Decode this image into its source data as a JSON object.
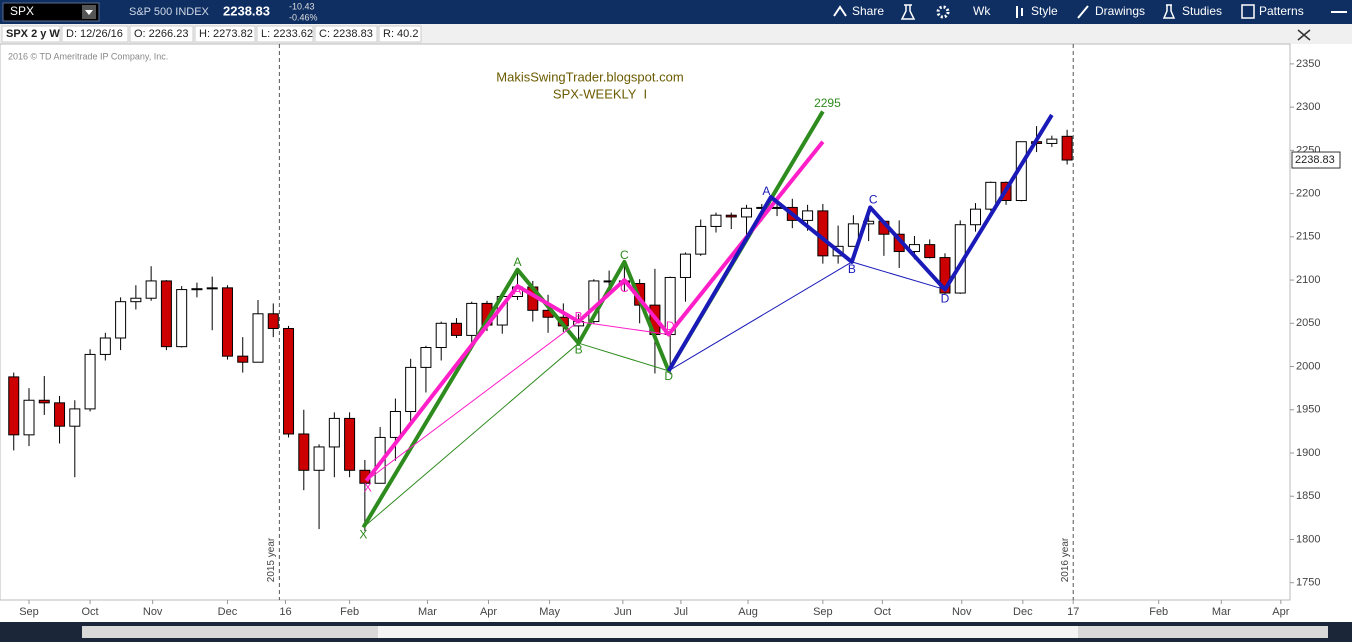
{
  "toolbar": {
    "symbol": "SPX",
    "name": "S&P 500 INDEX",
    "last": "2238.83",
    "change": "-10.43",
    "change_pct": "-0.46%",
    "buttons": [
      "Share",
      "Wk",
      "Style",
      "Drawings",
      "Studies",
      "Patterns"
    ]
  },
  "info_bar": [
    "SPX 2 y W",
    "D: 12/26/16",
    "O: 2266.23",
    "H: 2273.82",
    "L: 2233.62",
    "C: 2238.83",
    "R: 40.2"
  ],
  "chart_data": {
    "type": "candlestick",
    "copyright": "2016 © TD Ameritrade IP Company, Inc.",
    "title": "MakisSwingTrader.blogspot.com",
    "subtitle": "SPX-WEEKLY  I",
    "up_color": "#ffffff",
    "down_color": "#cc0000",
    "grid": false,
    "x": [
      0,
      1,
      2,
      3,
      4,
      5,
      6,
      7,
      8,
      9,
      10,
      11,
      12,
      13,
      14,
      15,
      16,
      17,
      18,
      19,
      20,
      21,
      22,
      23,
      24,
      25,
      26,
      27,
      28,
      29,
      30,
      31,
      32,
      33,
      34,
      35,
      36,
      37,
      38,
      39,
      40,
      41,
      42,
      43,
      44,
      45,
      46,
      47,
      48,
      49,
      50,
      51,
      52,
      53,
      54,
      55,
      56,
      57,
      58,
      59,
      60,
      61,
      62,
      63,
      64,
      65,
      66,
      67,
      68,
      69
    ],
    "open": [
      1988,
      1921,
      1961,
      1958,
      1931,
      1951,
      2014,
      2033,
      2075,
      2079,
      2099,
      2023,
      2089,
      2090,
      2091,
      2012,
      2005,
      2061,
      2044,
      1922,
      1880,
      1907,
      1940,
      1880,
      1865,
      1918,
      1948,
      1999,
      2022,
      2050,
      2036,
      2073,
      2048,
      2081,
      2092,
      2065,
      2057,
      2047,
      2052,
      2099,
      2099,
      2096,
      2071,
      2037,
      2103,
      2130,
      2162,
      2175,
      2173,
      2183,
      2184,
      2184,
      2169,
      2180,
      2128,
      2139,
      2165,
      2168,
      2153,
      2133,
      2141,
      2126,
      2085,
      2164,
      2182,
      2213,
      2192,
      2260,
      2258,
      2266.23
    ],
    "high": [
      1993,
      1975,
      1989,
      1966,
      1961,
      2020,
      2039,
      2080,
      2094,
      2116,
      2100,
      2093,
      2097,
      2104,
      2094,
      2034,
      2077,
      2073,
      2047,
      1950,
      1910,
      1947,
      1947,
      1892,
      1930,
      1963,
      2009,
      2024,
      2052,
      2056,
      2075,
      2076,
      2083,
      2111,
      2099,
      2083,
      2073,
      2061,
      2101,
      2111,
      2120,
      2101,
      2113,
      2104,
      2132,
      2170,
      2178,
      2178,
      2187,
      2188,
      2193,
      2194,
      2187,
      2188,
      2163,
      2175,
      2175,
      2169,
      2169,
      2151,
      2147,
      2131,
      2169,
      2189,
      2214,
      2214,
      2260,
      2278,
      2267,
      2273.82
    ],
    "low": [
      1903,
      1908,
      1944,
      1911,
      1872,
      1948,
      2007,
      2019,
      2066,
      2076,
      2019,
      2022,
      2080,
      2042,
      2008,
      1993,
      2005,
      2034,
      1918,
      1857,
      1812,
      1872,
      1872,
      1810,
      1865,
      1891,
      1937,
      1970,
      2007,
      2033,
      2022,
      2041,
      2038,
      2077,
      2052,
      2039,
      2040,
      2025,
      2049,
      2085,
      2087,
      2050,
      1992,
      1991,
      2075,
      2128,
      2155,
      2159,
      2147,
      2168,
      2174,
      2160,
      2157,
      2119,
      2119,
      2139,
      2145,
      2128,
      2114,
      2124,
      2125,
      2084,
      2084,
      2156,
      2180,
      2187,
      2191,
      2248,
      2254,
      2233.62
    ],
    "close": [
      1921,
      1961,
      1958,
      1931,
      1951,
      2014,
      2033,
      2075,
      2079,
      2099,
      2023,
      2089,
      2090,
      2091,
      2012,
      2005,
      2061,
      2044,
      1922,
      1880,
      1907,
      1940,
      1880,
      1865,
      1918,
      1948,
      1999,
      2022,
      2050,
      2036,
      2073,
      2048,
      2081,
      2092,
      2065,
      2057,
      2047,
      2052,
      2099,
      2099,
      2096,
      2071,
      2037,
      2103,
      2130,
      2162,
      2175,
      2173,
      2183,
      2184,
      2184,
      2169,
      2180,
      2128,
      2139,
      2165,
      2168,
      2153,
      2133,
      2141,
      2126,
      2085,
      2164,
      2182,
      2213,
      2192,
      2260,
      2258,
      2263,
      2238.83
    ],
    "xlim": [
      -0.9,
      83.6
    ],
    "ylim": [
      1730,
      2373
    ],
    "yticks": [
      1750,
      1800,
      1850,
      1900,
      1950,
      2000,
      2050,
      2100,
      2150,
      2200,
      2250,
      2300,
      2350
    ],
    "xticks": [
      {
        "value": 1.0,
        "label": "Sep"
      },
      {
        "value": 5.0,
        "label": "Oct"
      },
      {
        "value": 9.1,
        "label": "Nov"
      },
      {
        "value": 14.0,
        "label": "Dec"
      },
      {
        "value": 17.8,
        "label": "16"
      },
      {
        "value": 22.0,
        "label": "Feb"
      },
      {
        "value": 27.1,
        "label": "Mar"
      },
      {
        "value": 31.1,
        "label": "Apr"
      },
      {
        "value": 35.1,
        "label": "May"
      },
      {
        "value": 39.9,
        "label": "Jun"
      },
      {
        "value": 43.7,
        "label": "Jul"
      },
      {
        "value": 48.1,
        "label": "Aug"
      },
      {
        "value": 53.0,
        "label": "Sep"
      },
      {
        "value": 56.9,
        "label": "Oct"
      },
      {
        "value": 62.1,
        "label": "Nov"
      },
      {
        "value": 66.1,
        "label": "Dec"
      },
      {
        "value": 69.4,
        "label": "17"
      },
      {
        "value": 75.0,
        "label": "Feb"
      },
      {
        "value": 79.1,
        "label": "Mar"
      },
      {
        "value": 83.0,
        "label": "Apr"
      }
    ],
    "year_markers": [
      {
        "label": "2015 year",
        "x": 17.4
      },
      {
        "label": "2016 year",
        "x": 69.4
      }
    ],
    "drawings": [
      {
        "color": "#2e8b1e",
        "width": 4,
        "x": [
          22.9,
          33.0,
          37.0,
          40.0,
          42.9,
          53.0
        ],
        "y": [
          1814,
          2112,
          2027,
          2121,
          1995,
          2295
        ]
      },
      {
        "color": "#2e8b1e",
        "width": 1,
        "x": [
          22.9,
          37.0,
          42.9
        ],
        "y": [
          1814,
          2027,
          1995
        ]
      },
      {
        "color": "#ff1fc8",
        "width": 4,
        "x": [
          23.1,
          33.0,
          37.0,
          40.0,
          42.9,
          53.0
        ],
        "y": [
          1868,
          2093,
          2052,
          2100,
          2037,
          2260
        ]
      },
      {
        "color": "#ff1fc8",
        "width": 1,
        "x": [
          23.1,
          37.0,
          42.9
        ],
        "y": [
          1868,
          2052,
          2037
        ]
      },
      {
        "color": "#1a1ab8",
        "width": 4,
        "x": [
          42.9,
          49.6,
          54.9,
          56.1,
          61.0,
          68.0
        ],
        "y": [
          1995,
          2196,
          2121,
          2184,
          2089,
          2291
        ]
      },
      {
        "color": "#1a1ab8",
        "width": 1,
        "x": [
          42.9,
          54.9,
          61.0
        ],
        "y": [
          1995,
          2121,
          2089
        ]
      }
    ],
    "pattern_labels": [
      {
        "text": "X",
        "x": 22.9,
        "y": 1805,
        "color": "#2e8b1e"
      },
      {
        "text": "A",
        "x": 33.0,
        "y": 2120,
        "color": "#2e8b1e"
      },
      {
        "text": "B",
        "x": 37.0,
        "y": 2019,
        "color": "#2e8b1e"
      },
      {
        "text": "C",
        "x": 40.0,
        "y": 2128,
        "color": "#2e8b1e"
      },
      {
        "text": "D",
        "x": 42.9,
        "y": 1988,
        "color": "#2e8b1e"
      },
      {
        "text": "2295",
        "x": 53.3,
        "y": 2304,
        "color": "#2e8b1e"
      },
      {
        "text": "X",
        "x": 23.2,
        "y": 1859,
        "color": "#ff1fc8"
      },
      {
        "text": "A",
        "x": 33.0,
        "y": 2087,
        "color": "#ff1fc8"
      },
      {
        "text": "B",
        "x": 37.0,
        "y": 2057,
        "color": "#ff1fc8"
      },
      {
        "text": "C",
        "x": 40.0,
        "y": 2090,
        "color": "#ff1fc8"
      },
      {
        "text": "D",
        "x": 43.0,
        "y": 2046,
        "color": "#ff1fc8"
      },
      {
        "text": "A",
        "x": 49.3,
        "y": 2202,
        "color": "#1a1ab8"
      },
      {
        "text": "B",
        "x": 54.9,
        "y": 2112,
        "color": "#1a1ab8"
      },
      {
        "text": "C",
        "x": 56.3,
        "y": 2192,
        "color": "#1a1ab8"
      },
      {
        "text": "D",
        "x": 61.0,
        "y": 2078,
        "color": "#1a1ab8"
      }
    ]
  }
}
